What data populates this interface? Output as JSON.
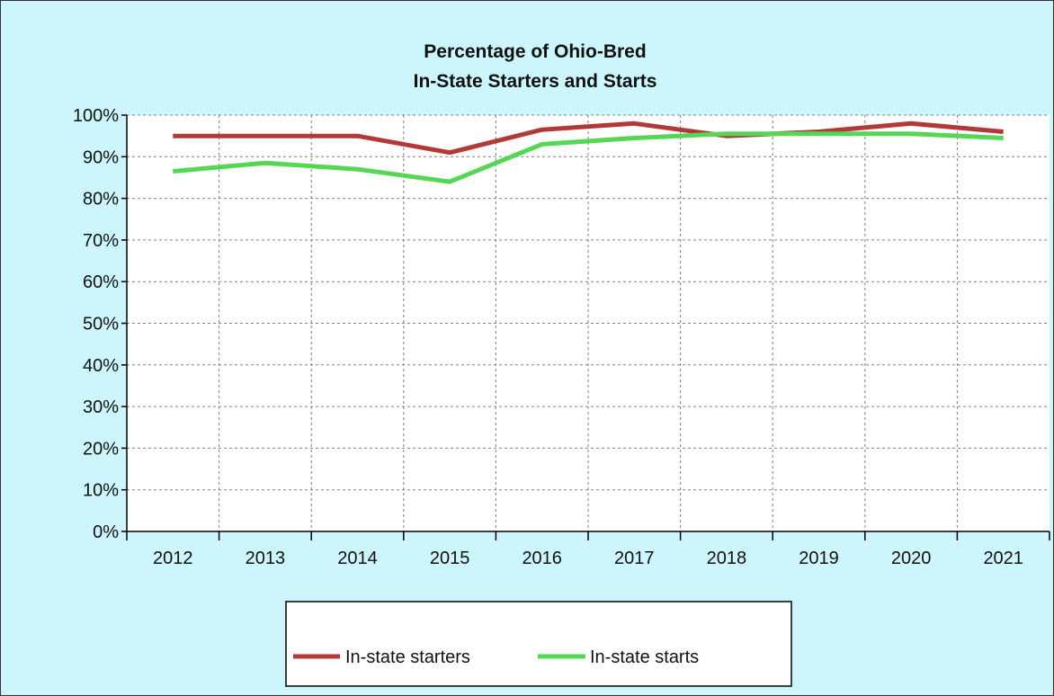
{
  "chart_data": {
    "type": "line",
    "title": [
      "Percentage of Ohio-Bred",
      "In-State Starters and Starts"
    ],
    "xlabel": "",
    "ylabel": "",
    "categories": [
      "2012",
      "2013",
      "2014",
      "2015",
      "2016",
      "2017",
      "2018",
      "2019",
      "2020",
      "2021"
    ],
    "yticks": [
      "0%",
      "10%",
      "20%",
      "30%",
      "40%",
      "50%",
      "60%",
      "70%",
      "80%",
      "90%",
      "100%"
    ],
    "ylim": [
      0,
      100
    ],
    "grid": true,
    "legend_position": "bottom",
    "series": [
      {
        "name": "In-state starters",
        "color": "#b03a3a",
        "values": [
          95,
          95,
          95,
          91,
          96.5,
          98,
          95,
          96,
          98,
          96
        ]
      },
      {
        "name": "In-state starts",
        "color": "#55d655",
        "values": [
          86.5,
          88.5,
          87,
          84,
          93,
          94.5,
          95.5,
          95.5,
          95.5,
          94.5
        ]
      }
    ]
  },
  "colors": {
    "background": "#ccf6fb",
    "plot_background": "#ffffff",
    "grid": "#808080"
  }
}
